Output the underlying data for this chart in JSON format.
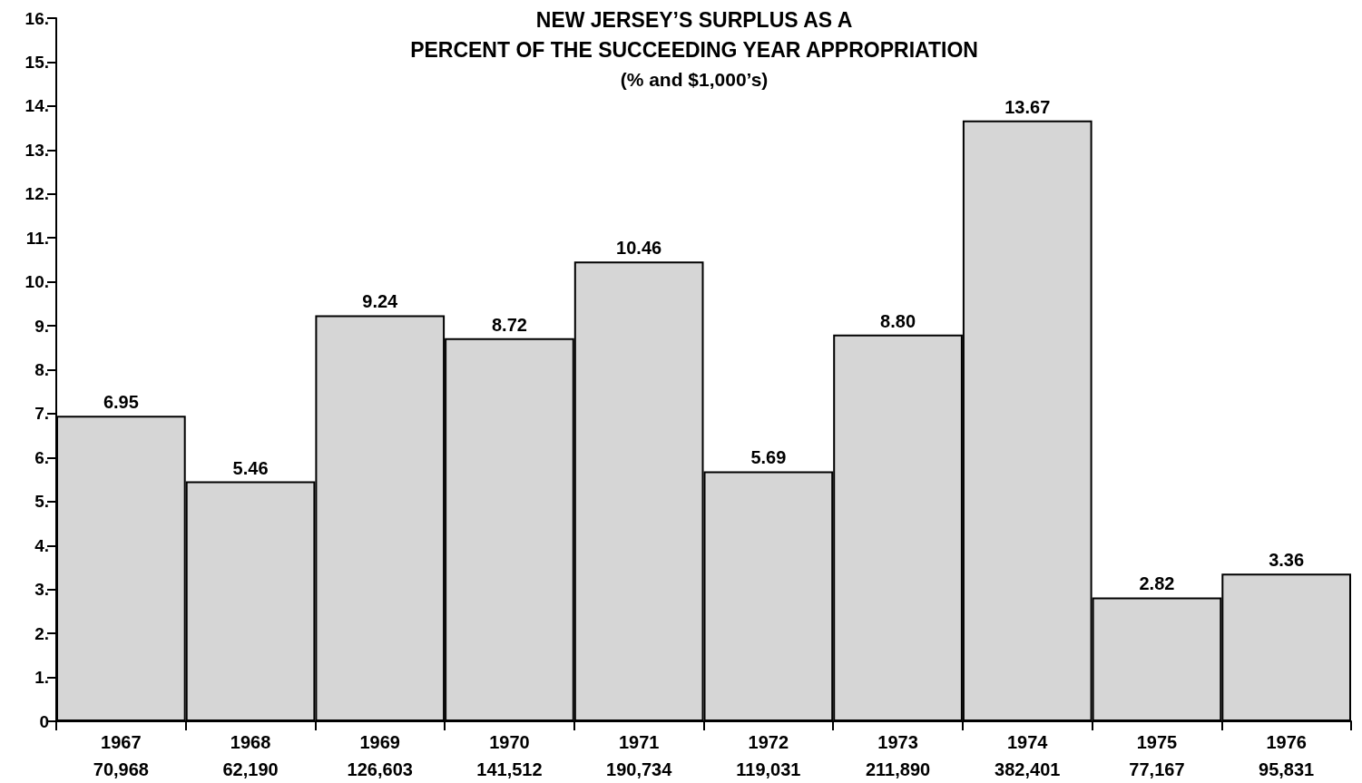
{
  "chart_data": {
    "type": "bar",
    "title": "NEW JERSEY’S SURPLUS AS A\nPERCENT OF THE SUCCEEDING YEAR APPROPRIATION",
    "subtitle": "(% and $1,000’s)",
    "categories": [
      "1967\n70,968",
      "1968\n62,190",
      "1969\n126,603",
      "1970\n141,512",
      "1971\n190,734",
      "1972\n119,031",
      "1973\n211,890",
      "1974\n382,401",
      "1975\n77,167",
      "1976\n95,831"
    ],
    "values": [
      6.95,
      5.46,
      9.24,
      8.72,
      10.46,
      5.69,
      8.8,
      13.67,
      2.82,
      3.36
    ],
    "value_labels": [
      "6.95",
      "5.46",
      "9.24",
      "8.72",
      "10.46",
      "5.69",
      "8.80",
      "13.67",
      "2.82",
      "3.36"
    ],
    "color": "#d6d6d6",
    "ylim": [
      0,
      16
    ],
    "yticks": [
      0,
      {
        "value": 1,
        "label": "1."
      },
      {
        "value": 2,
        "label": "2."
      },
      {
        "value": 3,
        "label": "3."
      },
      {
        "value": 4,
        "label": "4."
      },
      {
        "value": 5,
        "label": "5."
      },
      {
        "value": 6,
        "label": "6."
      },
      {
        "value": 7,
        "label": "7."
      },
      {
        "value": 8,
        "label": "8."
      },
      {
        "value": 9,
        "label": "9."
      },
      {
        "value": 10,
        "label": "10."
      },
      {
        "value": 11,
        "label": "11."
      },
      {
        "value": 12,
        "label": "12."
      },
      {
        "value": 13,
        "label": "13."
      },
      {
        "value": 14,
        "label": "14."
      },
      {
        "value": 15,
        "label": "15."
      },
      {
        "value": 16,
        "label": "16."
      }
    ],
    "grid": false
  }
}
